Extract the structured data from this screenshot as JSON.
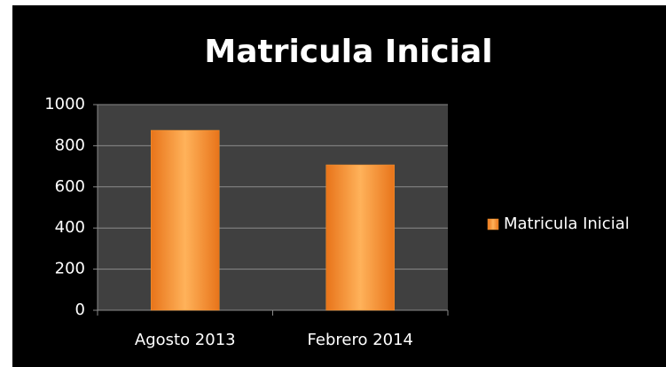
{
  "chart_data": {
    "type": "bar",
    "title": "Matricula Inicial",
    "categories": [
      "Agosto 2013",
      "Febrero 2014"
    ],
    "series": [
      {
        "name": "Matricula Inicial",
        "color": "#f7962f",
        "values": [
          875,
          707
        ]
      }
    ],
    "ylim": [
      0,
      1000
    ],
    "yticks": [
      0,
      200,
      400,
      600,
      800,
      1000
    ],
    "grid": true,
    "legend": "right"
  }
}
